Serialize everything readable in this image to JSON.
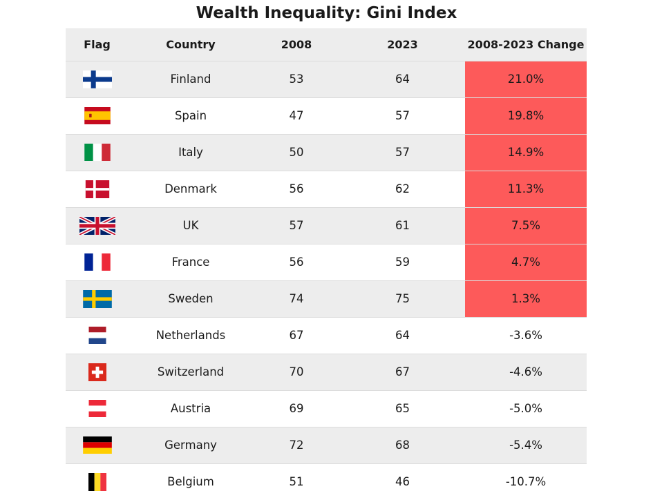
{
  "chart_data": {
    "type": "table",
    "title": "Wealth Inequality: Gini Index",
    "columns": [
      "Flag",
      "Country",
      "2008",
      "2023",
      "2008-2023 Change"
    ],
    "rows": [
      {
        "flag": "finland-flag-icon",
        "country": "Finland",
        "y2008": "53",
        "y2023": "64",
        "change": "21.0%",
        "highlight": true
      },
      {
        "flag": "spain-flag-icon",
        "country": "Spain",
        "y2008": "47",
        "y2023": "57",
        "change": "19.8%",
        "highlight": true
      },
      {
        "flag": "italy-flag-icon",
        "country": "Italy",
        "y2008": "50",
        "y2023": "57",
        "change": "14.9%",
        "highlight": true
      },
      {
        "flag": "denmark-flag-icon",
        "country": "Denmark",
        "y2008": "56",
        "y2023": "62",
        "change": "11.3%",
        "highlight": true
      },
      {
        "flag": "uk-flag-icon",
        "country": "UK",
        "y2008": "57",
        "y2023": "61",
        "change": "7.5%",
        "highlight": true
      },
      {
        "flag": "france-flag-icon",
        "country": "France",
        "y2008": "56",
        "y2023": "59",
        "change": "4.7%",
        "highlight": true
      },
      {
        "flag": "sweden-flag-icon",
        "country": "Sweden",
        "y2008": "74",
        "y2023": "75",
        "change": "1.3%",
        "highlight": true
      },
      {
        "flag": "netherlands-flag-icon",
        "country": "Netherlands",
        "y2008": "67",
        "y2023": "64",
        "change": "-3.6%",
        "highlight": false
      },
      {
        "flag": "switzerland-flag-icon",
        "country": "Switzerland",
        "y2008": "70",
        "y2023": "67",
        "change": "-4.6%",
        "highlight": false
      },
      {
        "flag": "austria-flag-icon",
        "country": "Austria",
        "y2008": "69",
        "y2023": "65",
        "change": "-5.0%",
        "highlight": false
      },
      {
        "flag": "germany-flag-icon",
        "country": "Germany",
        "y2008": "72",
        "y2023": "68",
        "change": "-5.4%",
        "highlight": false
      },
      {
        "flag": "belgium-flag-icon",
        "country": "Belgium",
        "y2008": "51",
        "y2023": "46",
        "change": "-10.7%",
        "highlight": false
      }
    ]
  },
  "colors": {
    "highlight": "#fd5a5a",
    "header_bg": "#ededed",
    "row_shade": "#ededed"
  }
}
